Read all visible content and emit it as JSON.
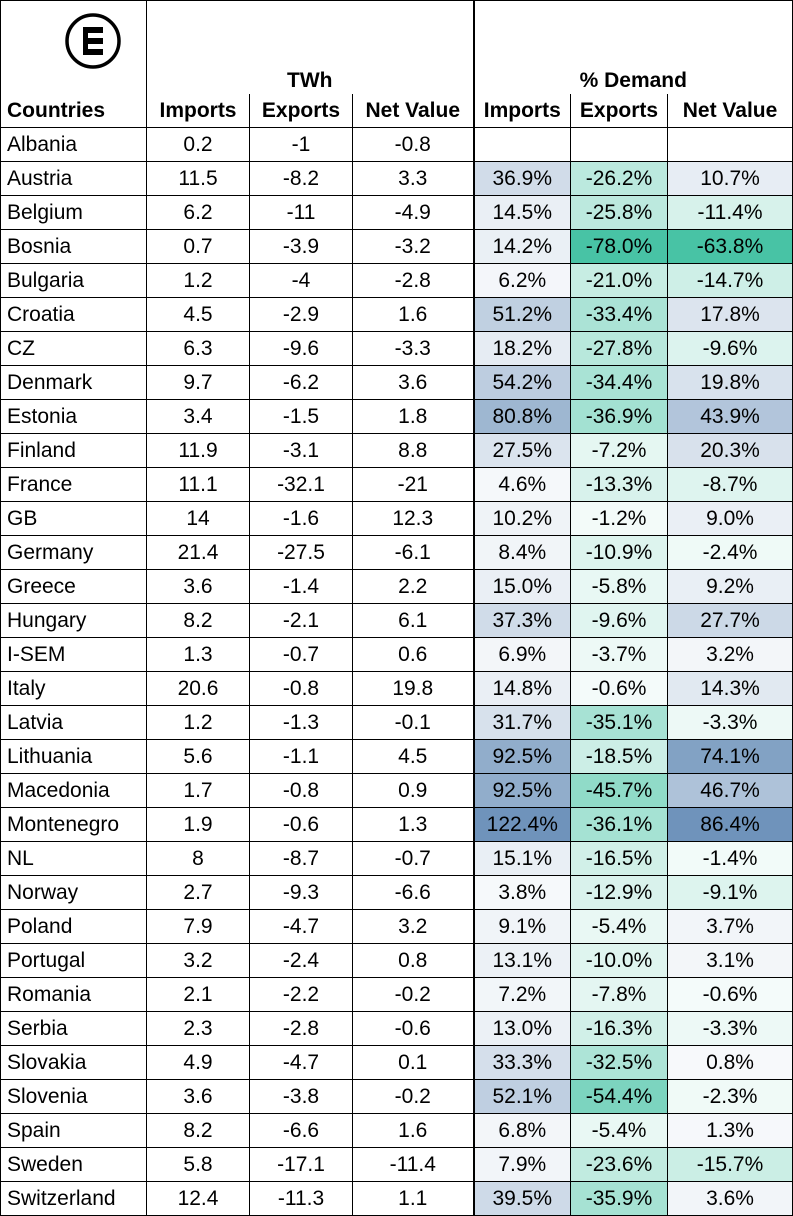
{
  "header": {
    "logo": "e-square-logo",
    "group_twh": "TWh",
    "group_demand": "% Demand",
    "col_countries": "Countries",
    "col_imports": "Imports",
    "col_exports": "Exports",
    "col_net": "Net Value",
    "col_imports_pct": "Imports",
    "col_exports_pct": "Exports",
    "col_net_pct": "Net Value"
  },
  "colors": {
    "imports_scale": "#6f93bb",
    "exports_scale": "#48c3a5",
    "net_positive_scale": "#6f93bb",
    "net_negative_scale": "#48c3a5"
  },
  "rows": [
    {
      "country": "Albania",
      "imports": "0.2",
      "exports": "-1",
      "net": "-0.8",
      "imports_pct": "",
      "exports_pct": "",
      "net_pct": ""
    },
    {
      "country": "Austria",
      "imports": "11.5",
      "exports": "-8.2",
      "net": "3.3",
      "imports_pct": "36.9%",
      "exports_pct": "-26.2%",
      "net_pct": "10.7%"
    },
    {
      "country": "Belgium",
      "imports": "6.2",
      "exports": "-11",
      "net": "-4.9",
      "imports_pct": "14.5%",
      "exports_pct": "-25.8%",
      "net_pct": "-11.4%"
    },
    {
      "country": "Bosnia",
      "imports": "0.7",
      "exports": "-3.9",
      "net": "-3.2",
      "imports_pct": "14.2%",
      "exports_pct": "-78.0%",
      "net_pct": "-63.8%"
    },
    {
      "country": "Bulgaria",
      "imports": "1.2",
      "exports": "-4",
      "net": "-2.8",
      "imports_pct": "6.2%",
      "exports_pct": "-21.0%",
      "net_pct": "-14.7%"
    },
    {
      "country": "Croatia",
      "imports": "4.5",
      "exports": "-2.9",
      "net": "1.6",
      "imports_pct": "51.2%",
      "exports_pct": "-33.4%",
      "net_pct": "17.8%"
    },
    {
      "country": "CZ",
      "imports": "6.3",
      "exports": "-9.6",
      "net": "-3.3",
      "imports_pct": "18.2%",
      "exports_pct": "-27.8%",
      "net_pct": "-9.6%"
    },
    {
      "country": "Denmark",
      "imports": "9.7",
      "exports": "-6.2",
      "net": "3.6",
      "imports_pct": "54.2%",
      "exports_pct": "-34.4%",
      "net_pct": "19.8%"
    },
    {
      "country": "Estonia",
      "imports": "3.4",
      "exports": "-1.5",
      "net": "1.8",
      "imports_pct": "80.8%",
      "exports_pct": "-36.9%",
      "net_pct": "43.9%"
    },
    {
      "country": "Finland",
      "imports": "11.9",
      "exports": "-3.1",
      "net": "8.8",
      "imports_pct": "27.5%",
      "exports_pct": "-7.2%",
      "net_pct": "20.3%"
    },
    {
      "country": "France",
      "imports": "11.1",
      "exports": "-32.1",
      "net": "-21",
      "imports_pct": "4.6%",
      "exports_pct": "-13.3%",
      "net_pct": "-8.7%"
    },
    {
      "country": "GB",
      "imports": "14",
      "exports": "-1.6",
      "net": "12.3",
      "imports_pct": "10.2%",
      "exports_pct": "-1.2%",
      "net_pct": "9.0%"
    },
    {
      "country": "Germany",
      "imports": "21.4",
      "exports": "-27.5",
      "net": "-6.1",
      "imports_pct": "8.4%",
      "exports_pct": "-10.9%",
      "net_pct": "-2.4%"
    },
    {
      "country": "Greece",
      "imports": "3.6",
      "exports": "-1.4",
      "net": "2.2",
      "imports_pct": "15.0%",
      "exports_pct": "-5.8%",
      "net_pct": "9.2%"
    },
    {
      "country": "Hungary",
      "imports": "8.2",
      "exports": "-2.1",
      "net": "6.1",
      "imports_pct": "37.3%",
      "exports_pct": "-9.6%",
      "net_pct": "27.7%"
    },
    {
      "country": "I-SEM",
      "imports": "1.3",
      "exports": "-0.7",
      "net": "0.6",
      "imports_pct": "6.9%",
      "exports_pct": "-3.7%",
      "net_pct": "3.2%"
    },
    {
      "country": "Italy",
      "imports": "20.6",
      "exports": "-0.8",
      "net": "19.8",
      "imports_pct": "14.8%",
      "exports_pct": "-0.6%",
      "net_pct": "14.3%"
    },
    {
      "country": "Latvia",
      "imports": "1.2",
      "exports": "-1.3",
      "net": "-0.1",
      "imports_pct": "31.7%",
      "exports_pct": "-35.1%",
      "net_pct": "-3.3%"
    },
    {
      "country": "Lithuania",
      "imports": "5.6",
      "exports": "-1.1",
      "net": "4.5",
      "imports_pct": "92.5%",
      "exports_pct": "-18.5%",
      "net_pct": "74.1%"
    },
    {
      "country": "Macedonia",
      "imports": "1.7",
      "exports": "-0.8",
      "net": "0.9",
      "imports_pct": "92.5%",
      "exports_pct": "-45.7%",
      "net_pct": "46.7%"
    },
    {
      "country": "Montenegro",
      "imports": "1.9",
      "exports": "-0.6",
      "net": "1.3",
      "imports_pct": "122.4%",
      "exports_pct": "-36.1%",
      "net_pct": "86.4%"
    },
    {
      "country": "NL",
      "imports": "8",
      "exports": "-8.7",
      "net": "-0.7",
      "imports_pct": "15.1%",
      "exports_pct": "-16.5%",
      "net_pct": "-1.4%"
    },
    {
      "country": "Norway",
      "imports": "2.7",
      "exports": "-9.3",
      "net": "-6.6",
      "imports_pct": "3.8%",
      "exports_pct": "-12.9%",
      "net_pct": "-9.1%"
    },
    {
      "country": "Poland",
      "imports": "7.9",
      "exports": "-4.7",
      "net": "3.2",
      "imports_pct": "9.1%",
      "exports_pct": "-5.4%",
      "net_pct": "3.7%"
    },
    {
      "country": "Portugal",
      "imports": "3.2",
      "exports": "-2.4",
      "net": "0.8",
      "imports_pct": "13.1%",
      "exports_pct": "-10.0%",
      "net_pct": "3.1%"
    },
    {
      "country": "Romania",
      "imports": "2.1",
      "exports": "-2.2",
      "net": "-0.2",
      "imports_pct": "7.2%",
      "exports_pct": "-7.8%",
      "net_pct": "-0.6%"
    },
    {
      "country": "Serbia",
      "imports": "2.3",
      "exports": "-2.8",
      "net": "-0.6",
      "imports_pct": "13.0%",
      "exports_pct": "-16.3%",
      "net_pct": "-3.3%"
    },
    {
      "country": "Slovakia",
      "imports": "4.9",
      "exports": "-4.7",
      "net": "0.1",
      "imports_pct": "33.3%",
      "exports_pct": "-32.5%",
      "net_pct": "0.8%"
    },
    {
      "country": "Slovenia",
      "imports": "3.6",
      "exports": "-3.8",
      "net": "-0.2",
      "imports_pct": "52.1%",
      "exports_pct": "-54.4%",
      "net_pct": "-2.3%"
    },
    {
      "country": "Spain",
      "imports": "8.2",
      "exports": "-6.6",
      "net": "1.6",
      "imports_pct": "6.8%",
      "exports_pct": "-5.4%",
      "net_pct": "1.3%"
    },
    {
      "country": "Sweden",
      "imports": "5.8",
      "exports": "-17.1",
      "net": "-11.4",
      "imports_pct": "7.9%",
      "exports_pct": "-23.6%",
      "net_pct": "-15.7%"
    },
    {
      "country": "Switzerland",
      "imports": "12.4",
      "exports": "-11.3",
      "net": "1.1",
      "imports_pct": "39.5%",
      "exports_pct": "-35.9%",
      "net_pct": "3.6%"
    }
  ]
}
